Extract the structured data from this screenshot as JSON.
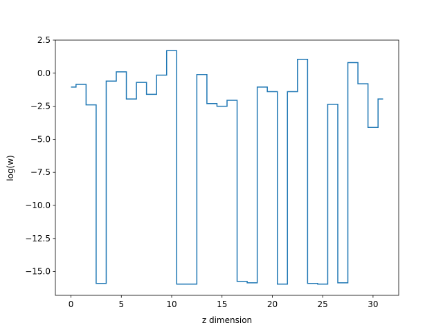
{
  "chart_data": {
    "type": "line",
    "drawstyle": "steps-mid",
    "xlabel": "z dimension",
    "ylabel": "log(w)",
    "xlim": [
      -1.55,
      32.55
    ],
    "ylim": [
      -16.8,
      2.5
    ],
    "xticks": [
      0,
      5,
      10,
      15,
      20,
      25,
      30
    ],
    "xtick_labels": [
      "0",
      "5",
      "10",
      "15",
      "20",
      "25",
      "30"
    ],
    "yticks": [
      2.5,
      0.0,
      -2.5,
      -5.0,
      -7.5,
      -10.0,
      -12.5,
      -15.0
    ],
    "ytick_labels": [
      "2.5",
      "0.0",
      "−2.5",
      "−5.0",
      "−7.5",
      "−10.0",
      "−12.5",
      "−15.0"
    ],
    "grid": false,
    "series": [
      {
        "color": "#1f77b4",
        "x": [
          0,
          1,
          2,
          3,
          4,
          5,
          6,
          7,
          8,
          9,
          10,
          11,
          12,
          13,
          14,
          15,
          16,
          17,
          18,
          19,
          20,
          21,
          22,
          23,
          24,
          25,
          26,
          27,
          28,
          29,
          30,
          31
        ],
        "y": [
          -1.05,
          -0.85,
          -2.4,
          -15.9,
          -0.6,
          0.1,
          -1.95,
          -0.7,
          -1.6,
          -0.15,
          1.7,
          -15.95,
          -15.95,
          -0.1,
          -2.3,
          -2.5,
          -2.05,
          -15.75,
          -15.85,
          -1.05,
          -1.4,
          -15.95,
          -1.4,
          1.05,
          -15.9,
          -15.95,
          -2.35,
          -15.85,
          0.8,
          -0.8,
          -4.1,
          -1.95
        ]
      }
    ]
  }
}
